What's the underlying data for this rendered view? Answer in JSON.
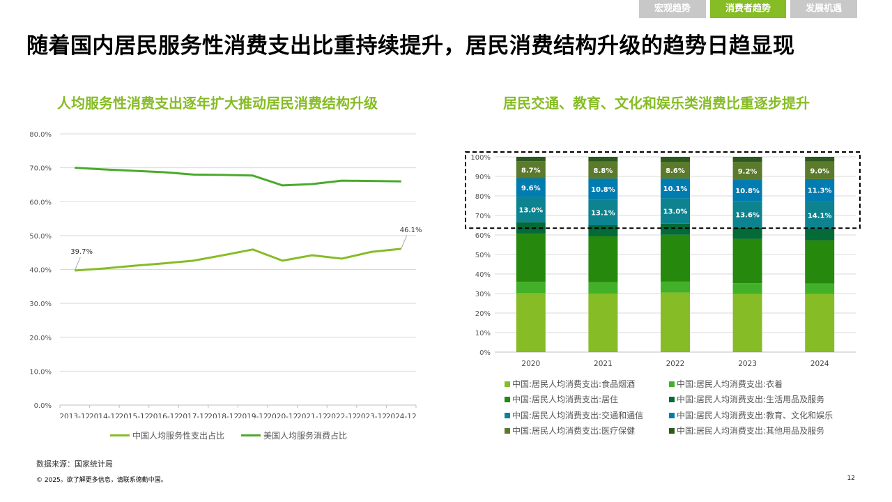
{
  "tabs": [
    {
      "label": "宏观趋势",
      "active": false
    },
    {
      "label": "消费者趋势",
      "active": true
    },
    {
      "label": "发展机遇",
      "active": false
    }
  ],
  "page_title": "随着国内居民服务性消费支出比重持续提升，居民消费结构升级的趋势日趋显现",
  "footer": {
    "source": "数据来源：国家统计局",
    "copyright": "© 2025。欲了解更多信息，请联系德勤中国。",
    "page_number": "12"
  },
  "colors": {
    "accent": "#86bc25",
    "line_china": "#86bc25",
    "line_us": "#4aaa2a",
    "grid": "#d9d9d9"
  },
  "chart_data": [
    {
      "type": "line",
      "title": "人均服务性消费支出逐年扩大推动居民消费结构升级",
      "x": [
        "2013-12",
        "2014-12",
        "2015-12",
        "2016-12",
        "2017-12",
        "2018-12",
        "2019-12",
        "2020-12",
        "2021-12",
        "2022-12",
        "2023-12",
        "2024-12"
      ],
      "ylim": [
        0,
        80
      ],
      "yticks": [
        "0.0%",
        "10.0%",
        "20.0%",
        "30.0%",
        "40.0%",
        "50.0%",
        "60.0%",
        "70.0%",
        "80.0%"
      ],
      "series": [
        {
          "name": "中国人均服务性支出占比",
          "color": "#86bc25",
          "values": [
            39.7,
            40.3,
            41.1,
            41.8,
            42.6,
            44.2,
            45.9,
            42.6,
            44.2,
            43.2,
            45.2,
            46.1
          ],
          "labels": {
            "0": "39.7%",
            "11": "46.1%"
          }
        },
        {
          "name": "美国人均服务消费占比",
          "color": "#4aaa2a",
          "values": [
            70.0,
            69.5,
            69.1,
            68.7,
            68.0,
            67.9,
            67.7,
            64.8,
            65.2,
            66.2,
            66.1,
            66.0
          ]
        }
      ]
    },
    {
      "type": "bar",
      "stacked": true,
      "title": "居民交通、教育、文化和娱乐类消费比重逐步提升",
      "categories": [
        "2020",
        "2021",
        "2022",
        "2023",
        "2024"
      ],
      "ylim": [
        0,
        100
      ],
      "yticks": [
        "0%",
        "10%",
        "20%",
        "30%",
        "40%",
        "50%",
        "60%",
        "70%",
        "80%",
        "90%",
        "100%"
      ],
      "highlight_range": [
        63.5,
        102.5
      ],
      "series": [
        {
          "name": "中国:居民人均消费支出:食品烟酒",
          "color": "#86bc25",
          "values": [
            30.2,
            30.0,
            30.5,
            29.8,
            29.8
          ]
        },
        {
          "name": "中国:居民人均消费支出:衣着",
          "color": "#43b02a",
          "values": [
            5.8,
            5.9,
            5.6,
            5.5,
            5.3
          ]
        },
        {
          "name": "中国:居民人均消费支出:居住",
          "color": "#26890d",
          "values": [
            24.6,
            23.4,
            24.0,
            22.7,
            22.2
          ]
        },
        {
          "name": "中国:居民人均消费支出:生活用品及服务",
          "color": "#046a38",
          "values": [
            5.9,
            5.7,
            5.7,
            5.8,
            5.9
          ]
        },
        {
          "name": "中国:居民人均消费支出:交通和通信",
          "color": "#0d8390",
          "values": [
            13.0,
            13.1,
            13.0,
            13.6,
            14.1
          ],
          "labels": [
            "13.0%",
            "13.1%",
            "13.0%",
            "13.6%",
            "14.1%"
          ]
        },
        {
          "name": "中国:居民人均消费支出:教育、文化和娱乐",
          "color": "#007cb0",
          "values": [
            9.6,
            10.8,
            10.1,
            10.8,
            11.3
          ],
          "labels": [
            "9.6%",
            "10.8%",
            "10.1%",
            "10.8%",
            "11.3%"
          ]
        },
        {
          "name": "中国:居民人均消费支出:医疗保健",
          "color": "#5b7a2b",
          "values": [
            8.7,
            8.8,
            8.6,
            9.2,
            9.0
          ],
          "labels": [
            "8.7%",
            "8.8%",
            "8.6%",
            "9.2%",
            "9.0%"
          ]
        },
        {
          "name": "中国:居民人均消费支出:其他用品及服务",
          "color": "#2c5a1e",
          "values": [
            2.2,
            2.3,
            2.5,
            2.6,
            2.4
          ]
        }
      ]
    }
  ]
}
